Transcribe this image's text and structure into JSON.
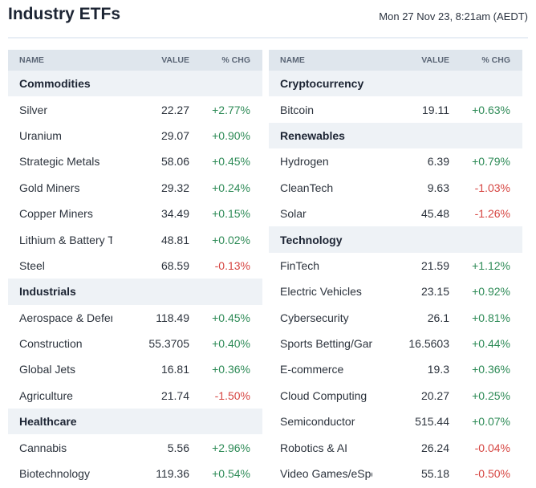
{
  "header": {
    "title": "Industry ETFs",
    "timestamp": "Mon 27 Nov 23, 8:21am (AEDT)"
  },
  "columns": {
    "name": "NAME",
    "value": "VALUE",
    "chg": "% CHG"
  },
  "colors": {
    "positive": "#2e8b57",
    "negative": "#d64541",
    "header_bg": "#dfe6ed",
    "category_bg": "#eef2f6"
  },
  "left": [
    {
      "type": "category",
      "name": "Commodities"
    },
    {
      "type": "item",
      "name": "Silver",
      "value": "22.27",
      "chg": "+2.77%"
    },
    {
      "type": "item",
      "name": "Uranium",
      "value": "29.07",
      "chg": "+0.90%"
    },
    {
      "type": "item",
      "name": "Strategic Metals",
      "value": "58.06",
      "chg": "+0.45%"
    },
    {
      "type": "item",
      "name": "Gold Miners",
      "value": "29.32",
      "chg": "+0.24%"
    },
    {
      "type": "item",
      "name": "Copper Miners",
      "value": "34.49",
      "chg": "+0.15%"
    },
    {
      "type": "item",
      "name": "Lithium & Battery Tech",
      "value": "48.81",
      "chg": "+0.02%"
    },
    {
      "type": "item",
      "name": "Steel",
      "value": "68.59",
      "chg": "-0.13%"
    },
    {
      "type": "category",
      "name": "Industrials"
    },
    {
      "type": "item",
      "name": "Aerospace & Defense",
      "value": "118.49",
      "chg": "+0.45%"
    },
    {
      "type": "item",
      "name": "Construction",
      "value": "55.3705",
      "chg": "+0.40%"
    },
    {
      "type": "item",
      "name": "Global Jets",
      "value": "16.81",
      "chg": "+0.36%"
    },
    {
      "type": "item",
      "name": "Agriculture",
      "value": "21.74",
      "chg": "-1.50%"
    },
    {
      "type": "category",
      "name": "Healthcare"
    },
    {
      "type": "item",
      "name": "Cannabis",
      "value": "5.56",
      "chg": "+2.96%"
    },
    {
      "type": "item",
      "name": "Biotechnology",
      "value": "119.36",
      "chg": "+0.54%"
    }
  ],
  "right": [
    {
      "type": "category",
      "name": "Cryptocurrency"
    },
    {
      "type": "item",
      "name": "Bitcoin",
      "value": "19.11",
      "chg": "+0.63%"
    },
    {
      "type": "category",
      "name": "Renewables"
    },
    {
      "type": "item",
      "name": "Hydrogen",
      "value": "6.39",
      "chg": "+0.79%"
    },
    {
      "type": "item",
      "name": "CleanTech",
      "value": "9.63",
      "chg": "-1.03%"
    },
    {
      "type": "item",
      "name": "Solar",
      "value": "45.48",
      "chg": "-1.26%"
    },
    {
      "type": "category",
      "name": "Technology"
    },
    {
      "type": "item",
      "name": "FinTech",
      "value": "21.59",
      "chg": "+1.12%"
    },
    {
      "type": "item",
      "name": "Electric Vehicles",
      "value": "23.15",
      "chg": "+0.92%"
    },
    {
      "type": "item",
      "name": "Cybersecurity",
      "value": "26.1",
      "chg": "+0.81%"
    },
    {
      "type": "item",
      "name": "Sports Betting/Gaming",
      "value": "16.5603",
      "chg": "+0.44%"
    },
    {
      "type": "item",
      "name": "E-commerce",
      "value": "19.3",
      "chg": "+0.36%"
    },
    {
      "type": "item",
      "name": "Cloud Computing",
      "value": "20.27",
      "chg": "+0.25%"
    },
    {
      "type": "item",
      "name": "Semiconductor",
      "value": "515.44",
      "chg": "+0.07%"
    },
    {
      "type": "item",
      "name": "Robotics & AI",
      "value": "26.24",
      "chg": "-0.04%"
    },
    {
      "type": "item",
      "name": "Video Games/eSports",
      "value": "55.18",
      "chg": "-0.50%"
    }
  ]
}
